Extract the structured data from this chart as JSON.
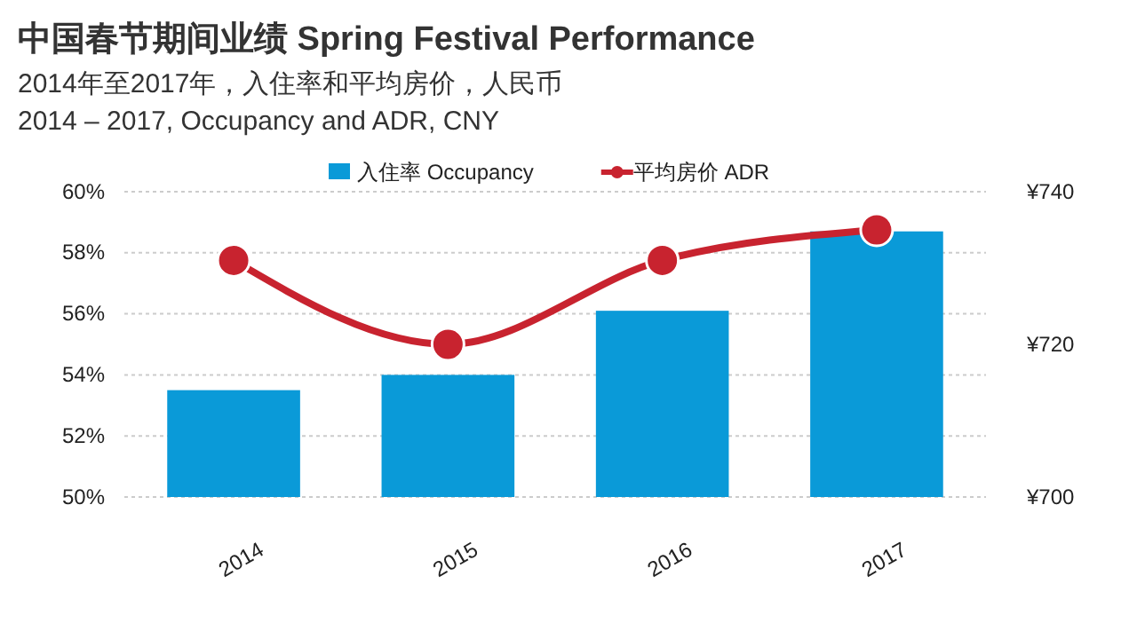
{
  "chart_data": {
    "type": "bar",
    "title": "中国春节期间业绩 Spring Festival Performance",
    "subtitle": "2014年至2017年，入住率和平均房价，人民币\n2014 – 2017, Occupancy and ADR, CNY",
    "categories": [
      "2014",
      "2015",
      "2016",
      "2017"
    ],
    "series": [
      {
        "name": "入住率 Occupancy",
        "color": "#0a9ad8",
        "values": [
          53.5,
          54.0,
          56.1,
          58.7
        ]
      },
      {
        "name": "平均房价 ADR",
        "type": "line",
        "axis": "y2",
        "color": "#c8232f",
        "marker": "circle",
        "values": [
          731,
          720,
          731,
          735
        ]
      }
    ],
    "ylim": [
      50,
      60
    ],
    "yticks": [
      {
        "value": 50,
        "label": "50%"
      },
      {
        "value": 52,
        "label": "52%"
      },
      {
        "value": 54,
        "label": "54%"
      },
      {
        "value": 56,
        "label": "56%"
      },
      {
        "value": 58,
        "label": "58%"
      },
      {
        "value": 60,
        "label": "60%"
      }
    ],
    "y2lim": [
      700,
      740
    ],
    "y2ticks": [
      {
        "value": 700,
        "label": "¥700"
      },
      {
        "value": 720,
        "label": "¥720"
      },
      {
        "value": 740,
        "label": "¥740"
      }
    ],
    "grid": "y",
    "legend": "top"
  }
}
